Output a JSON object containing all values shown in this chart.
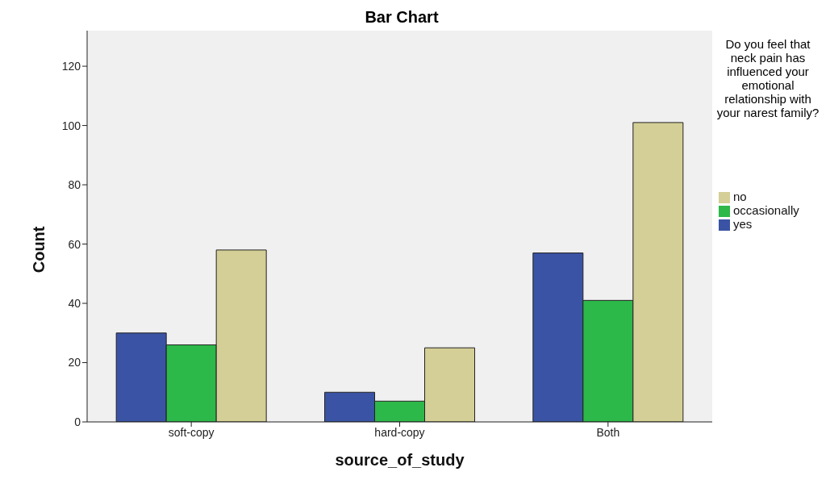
{
  "chart_data": {
    "type": "bar",
    "title": "Bar Chart",
    "xlabel": "source_of_study",
    "ylabel": "Count",
    "legend_title": "Do you feel that neck pain has influenced your emotional relationship with your narest family?",
    "categories": [
      "soft-copy",
      "hard-copy",
      "Both"
    ],
    "series": [
      {
        "name": "yes",
        "color": "#3a53a4",
        "values": [
          30,
          10,
          57
        ]
      },
      {
        "name": "occasionally",
        "color": "#2db84a",
        "values": [
          26,
          7,
          41
        ]
      },
      {
        "name": "no",
        "color": "#d4cf96",
        "values": [
          58,
          25,
          101
        ]
      }
    ],
    "ylim": [
      0,
      132
    ],
    "yticks": [
      0,
      20,
      40,
      60,
      80,
      100,
      120
    ],
    "grid": false,
    "legend": "right"
  }
}
